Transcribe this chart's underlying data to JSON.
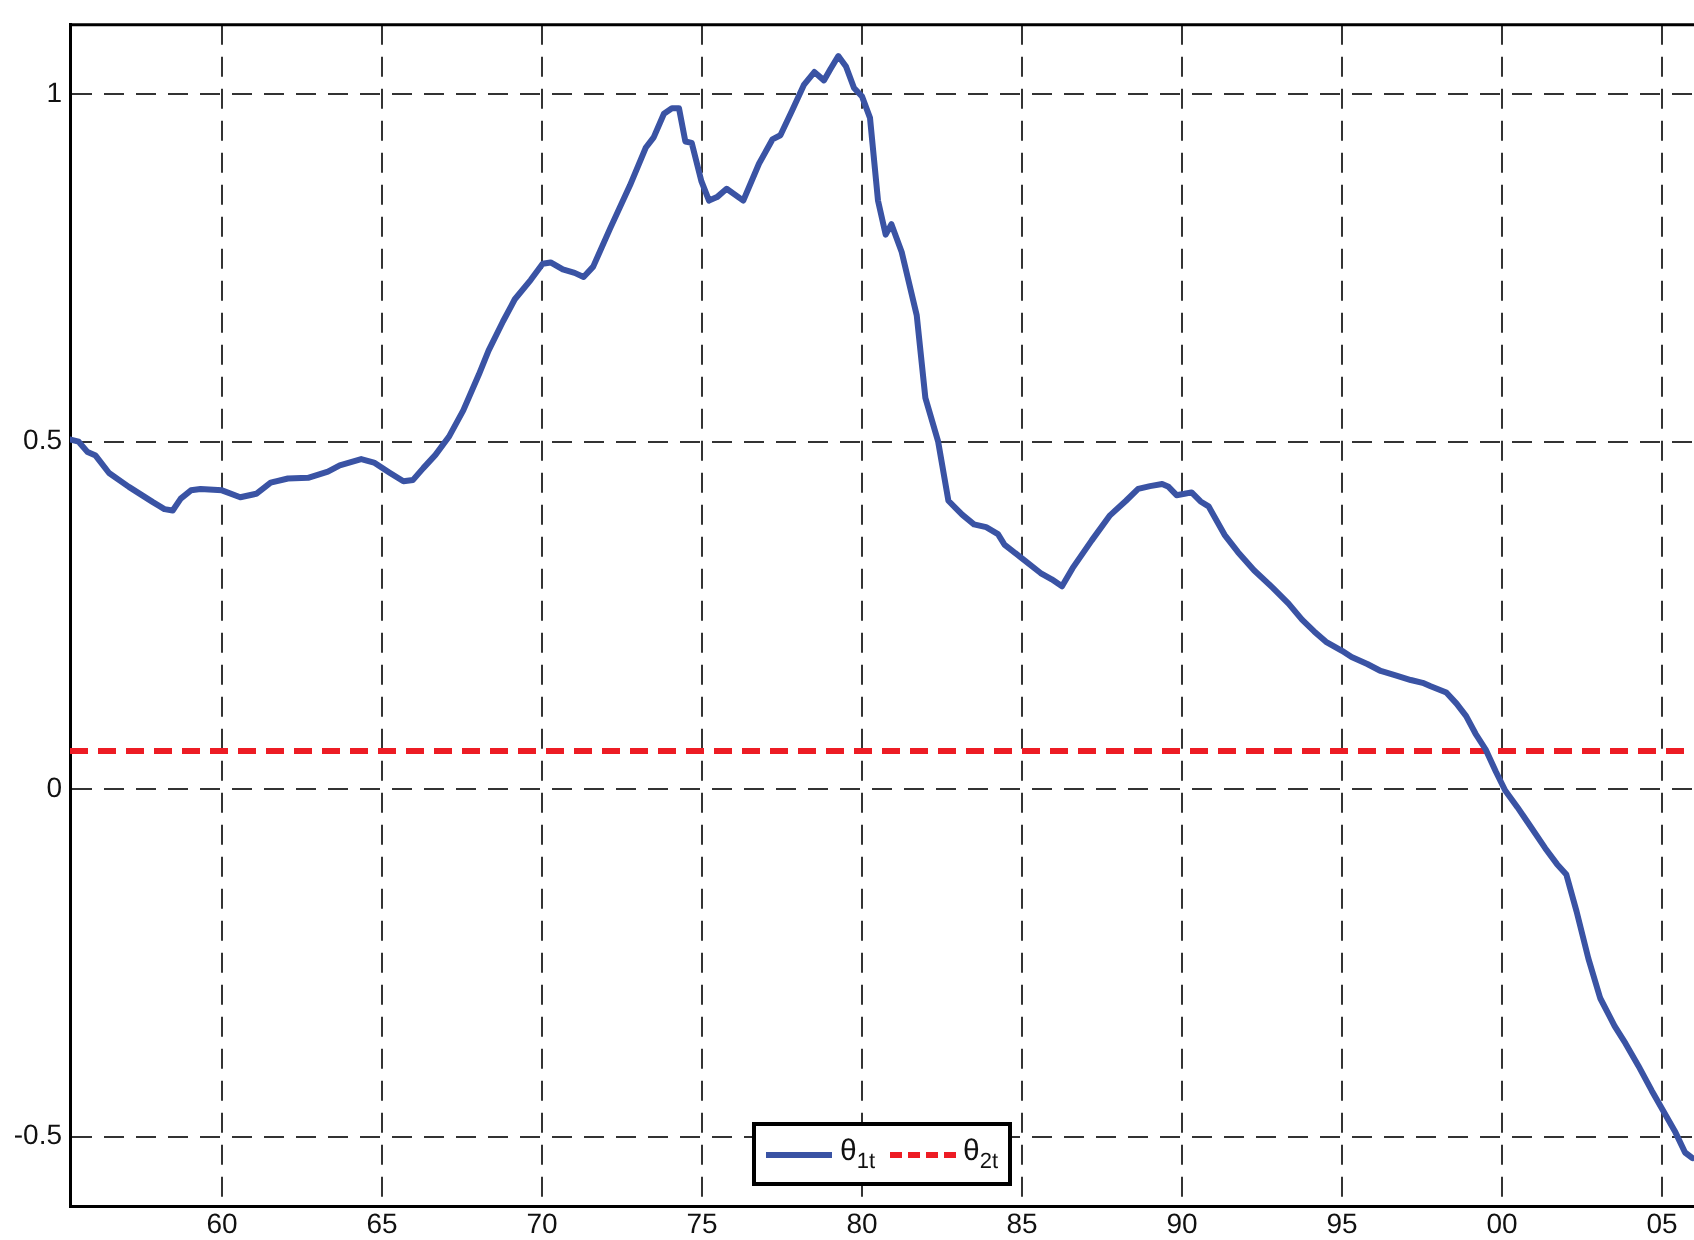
{
  "chart_data": {
    "type": "line",
    "xlim": [
      1955.25,
      2006
    ],
    "ylim": [
      -0.6,
      1.1
    ],
    "xticks": [
      {
        "value": 1960,
        "label": "60"
      },
      {
        "value": 1965,
        "label": "65"
      },
      {
        "value": 1970,
        "label": "70"
      },
      {
        "value": 1975,
        "label": "75"
      },
      {
        "value": 1980,
        "label": "80"
      },
      {
        "value": 1985,
        "label": "85"
      },
      {
        "value": 1990,
        "label": "90"
      },
      {
        "value": 1995,
        "label": "95"
      },
      {
        "value": 2000,
        "label": "00"
      },
      {
        "value": 2005,
        "label": "05"
      }
    ],
    "yticks": [
      -0.5,
      0,
      0.5,
      1
    ],
    "grid": true,
    "legend": "bottom",
    "marker": "none",
    "series": [
      {
        "name": "θ$_{1t}$",
        "color": "#3a53a4",
        "line_style": "solid",
        "x": [
          1955.27,
          1955.52,
          1955.8,
          1956.05,
          1956.47,
          1957.09,
          1957.84,
          1958.2,
          1958.46,
          1958.71,
          1959.03,
          1959.33,
          1960.0,
          1960.57,
          1961.07,
          1961.52,
          1962.06,
          1962.69,
          1963.31,
          1963.68,
          1964.35,
          1964.75,
          1965.25,
          1965.67,
          1965.97,
          1966.29,
          1966.67,
          1967.09,
          1967.54,
          1968.03,
          1968.33,
          1968.78,
          1969.15,
          1969.65,
          1970.02,
          1970.27,
          1970.65,
          1971.02,
          1971.3,
          1971.6,
          1972.13,
          1972.75,
          1973.24,
          1973.49,
          1973.81,
          1974.06,
          1974.28,
          1974.48,
          1974.68,
          1974.98,
          1975.22,
          1975.47,
          1975.77,
          1976.29,
          1976.78,
          1977.2,
          1977.45,
          1977.82,
          1978.19,
          1978.51,
          1978.81,
          1979.01,
          1979.26,
          1979.5,
          1979.75,
          1980.0,
          1980.25,
          1980.5,
          1980.74,
          1980.92,
          1981.24,
          1981.71,
          1981.98,
          1982.38,
          1982.7,
          1983.13,
          1983.5,
          1983.88,
          1984.25,
          1984.45,
          1985.0,
          1985.58,
          1985.93,
          1986.25,
          1986.58,
          1987.18,
          1987.75,
          1988.25,
          1988.63,
          1989.0,
          1989.38,
          1989.58,
          1989.83,
          1990.08,
          1990.3,
          1990.58,
          1990.83,
          1991.33,
          1991.75,
          1992.25,
          1992.83,
          1993.33,
          1993.75,
          1994.13,
          1994.5,
          1995.0,
          1995.3,
          1995.79,
          1996.21,
          1996.65,
          1997.15,
          1997.52,
          1997.77,
          1998.26,
          1998.58,
          1998.88,
          1999.17,
          1999.49,
          1999.81,
          2000.1,
          2000.48,
          2000.85,
          2001.35,
          2001.72,
          2002.01,
          2002.33,
          2002.7,
          2003.07,
          2003.52,
          2003.86,
          2004.26,
          2004.68,
          2005.05,
          2005.42,
          2005.72,
          2005.95
        ],
        "values": [
          0.503,
          0.5,
          0.485,
          0.48,
          0.455,
          0.435,
          0.413,
          0.403,
          0.401,
          0.418,
          0.43,
          0.432,
          0.43,
          0.42,
          0.425,
          0.441,
          0.447,
          0.448,
          0.457,
          0.466,
          0.475,
          0.47,
          0.455,
          0.443,
          0.445,
          0.462,
          0.481,
          0.507,
          0.545,
          0.597,
          0.631,
          0.673,
          0.705,
          0.733,
          0.756,
          0.758,
          0.748,
          0.743,
          0.737,
          0.752,
          0.807,
          0.869,
          0.923,
          0.938,
          0.972,
          0.98,
          0.98,
          0.932,
          0.93,
          0.875,
          0.847,
          0.852,
          0.864,
          0.847,
          0.9,
          0.935,
          0.941,
          0.977,
          1.014,
          1.032,
          1.02,
          1.036,
          1.055,
          1.04,
          1.009,
          0.997,
          0.966,
          0.847,
          0.798,
          0.813,
          0.773,
          0.682,
          0.563,
          0.5,
          0.415,
          0.395,
          0.381,
          0.377,
          0.367,
          0.352,
          0.332,
          0.311,
          0.302,
          0.292,
          0.318,
          0.358,
          0.394,
          0.415,
          0.432,
          0.436,
          0.439,
          0.435,
          0.423,
          0.425,
          0.427,
          0.414,
          0.407,
          0.366,
          0.341,
          0.315,
          0.29,
          0.267,
          0.244,
          0.227,
          0.212,
          0.199,
          0.19,
          0.18,
          0.17,
          0.164,
          0.157,
          0.153,
          0.148,
          0.139,
          0.123,
          0.105,
          0.08,
          0.057,
          0.025,
          -0.002,
          -0.026,
          -0.051,
          -0.085,
          -0.108,
          -0.123,
          -0.176,
          -0.244,
          -0.301,
          -0.341,
          -0.366,
          -0.398,
          -0.434,
          -0.464,
          -0.494,
          -0.523,
          -0.531
        ]
      },
      {
        "name": "θ$_{2t}$",
        "color": "#ed1c24",
        "line_style": "dashed",
        "x": [
          1955.25,
          2006
        ],
        "values": [
          0.055,
          0.055
        ]
      }
    ]
  }
}
